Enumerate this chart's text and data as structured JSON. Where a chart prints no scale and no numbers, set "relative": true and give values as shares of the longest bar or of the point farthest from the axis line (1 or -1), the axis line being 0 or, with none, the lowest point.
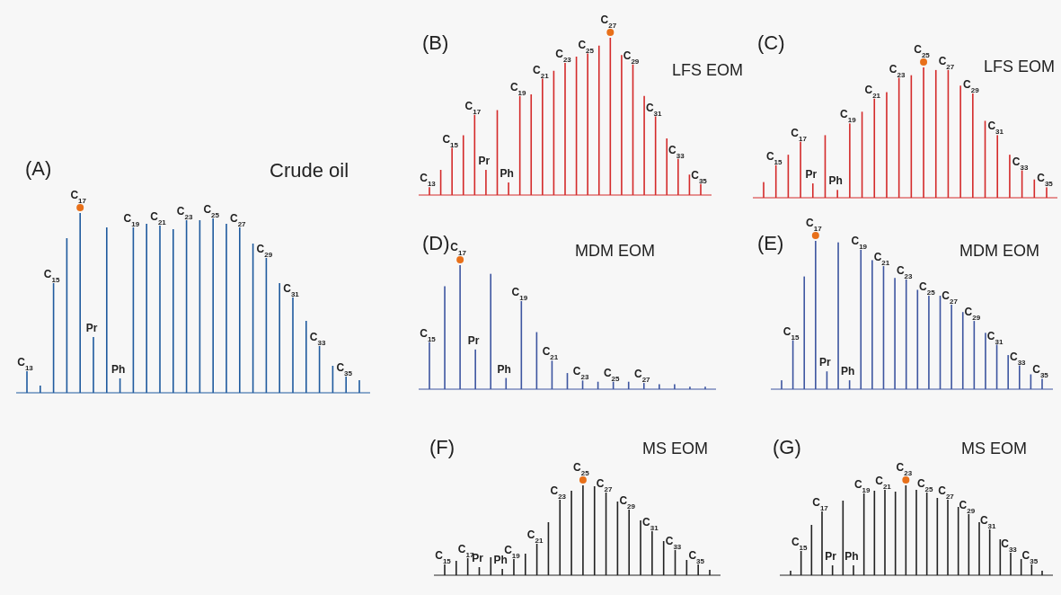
{
  "chart_data": [
    {
      "type": "bar",
      "relative": true,
      "title": "(A)",
      "subtitle": "Crude oil",
      "color": "#1f5a9e",
      "categories": [
        "C$_{13}$",
        null,
        "C$_{15}$",
        null,
        "C$_{17}$",
        "Pr",
        null,
        "Ph",
        "C$_{19}$",
        null,
        "C$_{21}$",
        null,
        "C$_{23}$",
        null,
        "C$_{25}$",
        null,
        "C$_{27}$",
        null,
        "C$_{29}$",
        null,
        "C$_{31}$",
        null,
        "C$_{33}$",
        null,
        "C$_{35}$",
        null
      ],
      "values": [
        0.12,
        0.04,
        0.61,
        0.86,
        1,
        0.31,
        0.92,
        0.08,
        0.92,
        0.94,
        0.93,
        0.91,
        0.96,
        0.96,
        0.97,
        0.94,
        0.92,
        0.83,
        0.75,
        0.61,
        0.53,
        0.4,
        0.26,
        0.15,
        0.09,
        0.07
      ]
    },
    {
      "type": "bar",
      "relative": true,
      "title": "(B)",
      "subtitle": "LFS EOM",
      "color": "#d42a2a",
      "categories": [
        "C$_{13}$",
        null,
        "C$_{15}$",
        null,
        "C$_{17}$",
        "Pr",
        null,
        "Ph",
        "C$_{19}$",
        null,
        "C$_{21}$",
        null,
        "C$_{23}$",
        null,
        "C$_{25}$",
        null,
        "C$_{27}$",
        null,
        "C$_{29}$",
        null,
        "C$_{31}$",
        null,
        "C$_{33}$",
        null,
        "C$_{35}$"
      ],
      "values": [
        0.05,
        0.16,
        0.3,
        0.38,
        0.51,
        0.16,
        0.54,
        0.08,
        0.63,
        0.64,
        0.74,
        0.79,
        0.84,
        0.88,
        0.9,
        0.95,
        1,
        0.89,
        0.83,
        0.63,
        0.5,
        0.36,
        0.23,
        0.13,
        0.07
      ]
    },
    {
      "type": "bar",
      "relative": true,
      "title": "(C)",
      "subtitle": "LFS EOM",
      "color": "#d42a2a",
      "categories": [
        null,
        "C$_{15}$",
        null,
        "C$_{17}$",
        "Pr",
        null,
        "Ph",
        "C$_{19}$",
        null,
        "C$_{21}$",
        null,
        "C$_{23}$",
        null,
        "C$_{25}$",
        null,
        "C$_{27}$",
        null,
        "C$_{29}$",
        null,
        "C$_{31}$",
        null,
        "C$_{33}$",
        null,
        "C$_{35}$"
      ],
      "values": [
        0.12,
        0.25,
        0.33,
        0.43,
        0.11,
        0.48,
        0.06,
        0.57,
        0.66,
        0.76,
        0.81,
        0.92,
        0.94,
        1,
        0.98,
        0.98,
        0.86,
        0.8,
        0.59,
        0.48,
        0.33,
        0.21,
        0.14,
        0.08
      ]
    },
    {
      "type": "bar",
      "relative": true,
      "title": "(D)",
      "subtitle": "MDM EOM",
      "color": "#3d55a0",
      "categories": [
        "C$_{15}$",
        null,
        "C$_{17}$",
        "Pr",
        null,
        "Ph",
        "C$_{19}$",
        null,
        "C$_{21}$",
        null,
        "C$_{23}$",
        null,
        "C$_{25}$",
        null,
        "C$_{27}$",
        null,
        null,
        null,
        null
      ],
      "values": [
        0.38,
        0.83,
        1,
        0.32,
        0.93,
        0.09,
        0.71,
        0.46,
        0.23,
        0.13,
        0.07,
        0.06,
        0.06,
        0.06,
        0.05,
        0.04,
        0.04,
        0.02,
        0.02
      ]
    },
    {
      "type": "bar",
      "relative": true,
      "title": "(E)",
      "subtitle": "MDM EOM",
      "color": "#3d55a0",
      "categories": [
        null,
        "C$_{15}$",
        null,
        "C$_{17}$",
        "Pr",
        null,
        "Ph",
        "C$_{19}$",
        null,
        "C$_{21}$",
        null,
        "C$_{23}$",
        null,
        "C$_{25}$",
        null,
        "C$_{27}$",
        null,
        "C$_{29}$",
        null,
        "C$_{31}$",
        null,
        "C$_{33}$",
        null,
        "C$_{35}$"
      ],
      "values": [
        0.06,
        0.33,
        0.76,
        1,
        0.12,
        0.99,
        0.06,
        0.94,
        0.87,
        0.83,
        0.75,
        0.74,
        0.67,
        0.63,
        0.63,
        0.57,
        0.52,
        0.46,
        0.38,
        0.3,
        0.23,
        0.16,
        0.1,
        0.07
      ]
    },
    {
      "type": "bar",
      "relative": true,
      "title": "(F)",
      "subtitle": "MS EOM",
      "color": "#222222",
      "categories": [
        "C$_{15}$",
        null,
        "C$_{17}$",
        "Pr",
        null,
        "Ph",
        "C$_{19}$",
        null,
        "C$_{21}$",
        null,
        "C$_{23}$",
        null,
        "C$_{25}$",
        null,
        "C$_{27}$",
        null,
        "C$_{29}$",
        null,
        "C$_{31}$",
        null,
        "C$_{33}$",
        null,
        "C$_{35}$",
        null
      ],
      "values": [
        0.12,
        0.16,
        0.19,
        0.09,
        0.2,
        0.07,
        0.18,
        0.24,
        0.35,
        0.59,
        0.84,
        0.94,
        1,
        0.99,
        0.92,
        0.82,
        0.73,
        0.61,
        0.49,
        0.38,
        0.28,
        0.17,
        0.12,
        0.06
      ]
    },
    {
      "type": "bar",
      "relative": true,
      "title": "(G)",
      "subtitle": "MS EOM",
      "color": "#222222",
      "categories": [
        null,
        "C$_{15}$",
        null,
        "C$_{17}$",
        "Pr",
        null,
        "Ph",
        "C$_{19}$",
        null,
        "C$_{21}$",
        null,
        "C$_{23}$",
        null,
        "C$_{25}$",
        null,
        "C$_{27}$",
        null,
        "C$_{29}$",
        null,
        "C$_{31}$",
        null,
        "C$_{33}$",
        null,
        "C$_{35}$",
        null
      ],
      "values": [
        0.05,
        0.27,
        0.56,
        0.71,
        0.11,
        0.83,
        0.11,
        0.91,
        0.94,
        0.95,
        0.93,
        1,
        0.95,
        0.92,
        0.86,
        0.84,
        0.76,
        0.68,
        0.59,
        0.51,
        0.4,
        0.25,
        0.18,
        0.12,
        0.05
      ]
    }
  ]
}
